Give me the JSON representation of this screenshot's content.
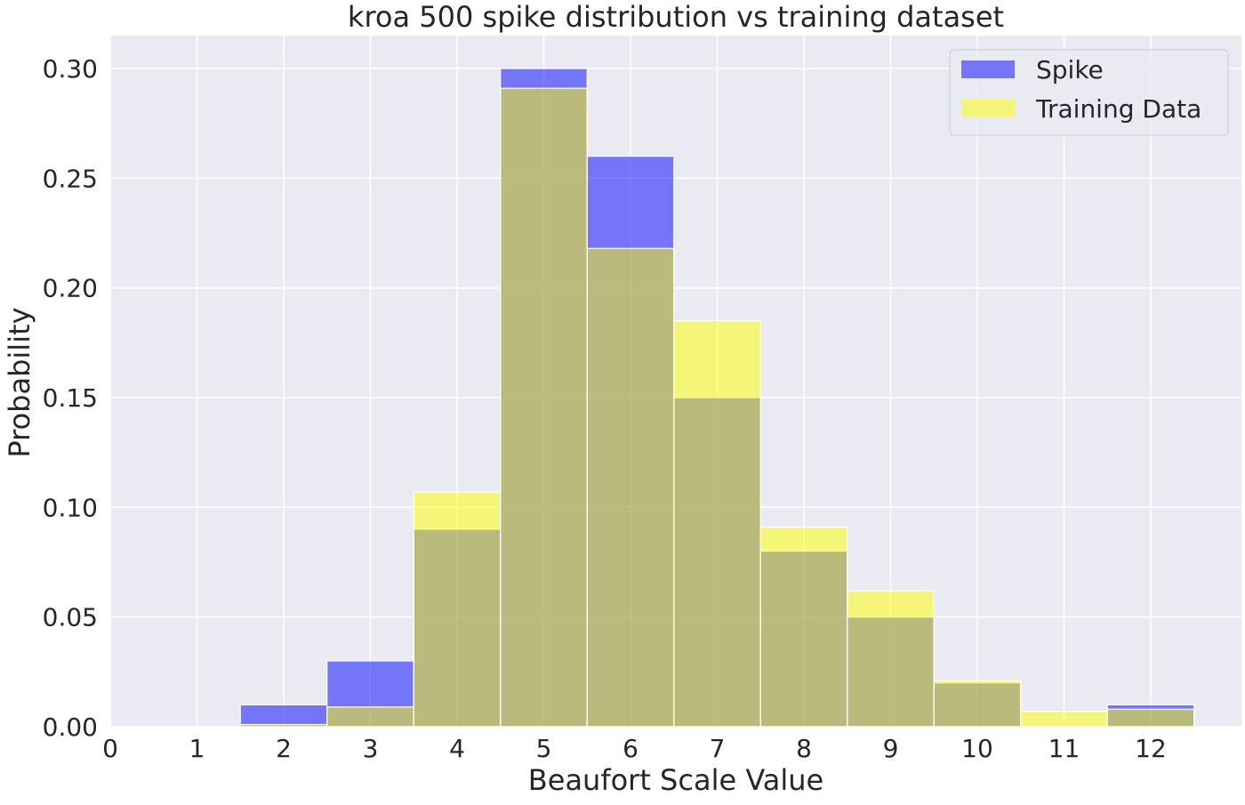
{
  "chart_data": {
    "type": "bar",
    "title": "kroa 500 spike distribution vs training dataset",
    "xlabel": "Beaufort Scale Value",
    "ylabel": "Probability",
    "xlim": [
      0,
      13
    ],
    "ylim": [
      0,
      0.315
    ],
    "x_ticks": [
      "0",
      "1",
      "2",
      "3",
      "4",
      "5",
      "6",
      "7",
      "8",
      "9",
      "10",
      "11",
      "12"
    ],
    "y_ticks": [
      "0.00",
      "0.05",
      "0.10",
      "0.15",
      "0.20",
      "0.25",
      "0.30"
    ],
    "categories": [
      2,
      3,
      4,
      5,
      6,
      7,
      8,
      9,
      10,
      11,
      12
    ],
    "series": [
      {
        "name": "Spike",
        "color": "#0000ff",
        "values": [
          0.01,
          0.03,
          0.09,
          0.3,
          0.26,
          0.15,
          0.08,
          0.05,
          0.02,
          0.0,
          0.01
        ]
      },
      {
        "name": "Training Data",
        "color": "#ffff00",
        "values": [
          0.001,
          0.009,
          0.107,
          0.291,
          0.218,
          0.185,
          0.091,
          0.062,
          0.021,
          0.007,
          0.008
        ]
      }
    ],
    "legend_position": "top-right",
    "grid": true,
    "background_color": "#eaeaf2"
  }
}
